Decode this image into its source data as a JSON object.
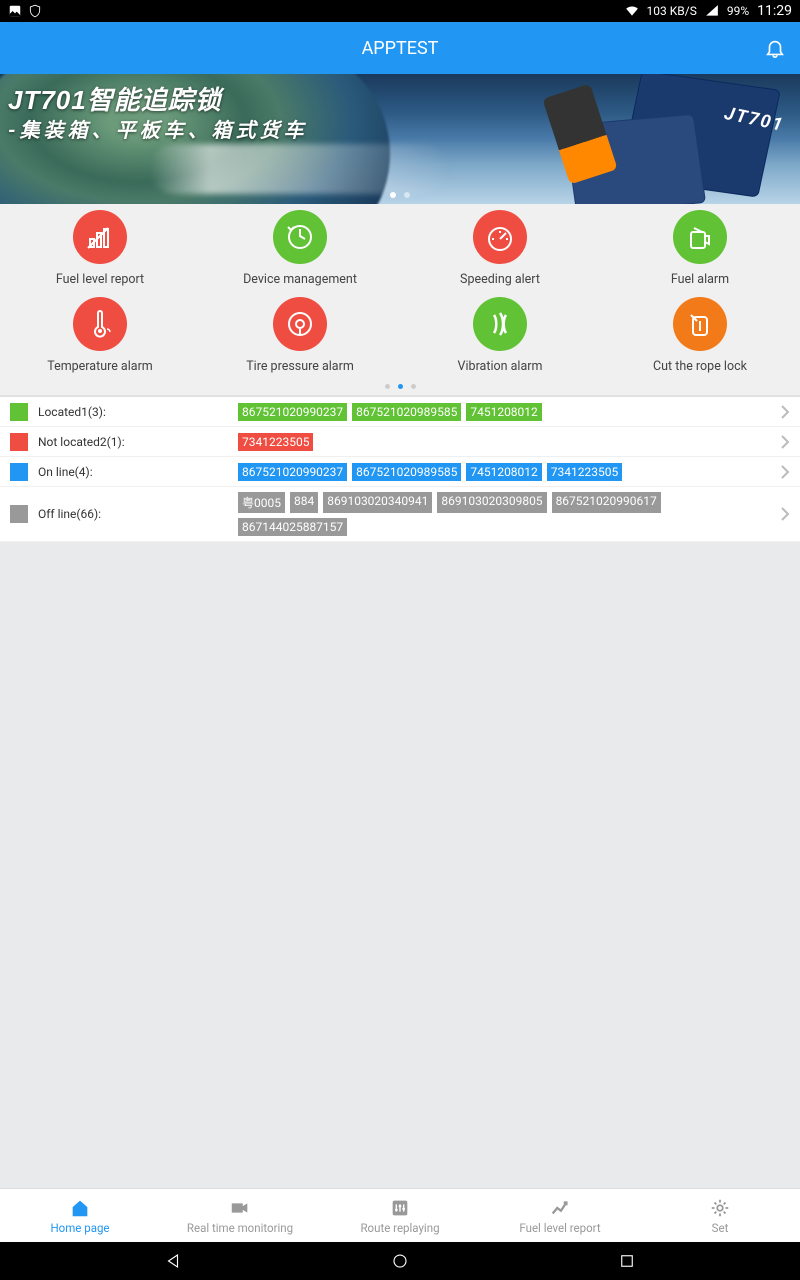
{
  "status_bar": {
    "data_speed": "103 KB/S",
    "battery": "99%",
    "time": "11:29"
  },
  "header": {
    "title": "APPTEST"
  },
  "banner": {
    "title_code": "JT701",
    "title_text": "智能追踪锁",
    "subtitle": "-集装箱、平板车、箱式货车",
    "device_label": "JT701"
  },
  "colors": {
    "red": "#f04d42",
    "green": "#60c234",
    "orange": "#f37a18",
    "blue_header": "#2196f3",
    "gray": "#999999",
    "chip_green": "#60c234",
    "chip_red": "#f04d42",
    "chip_blue": "#2196f3",
    "chip_gray": "#999999"
  },
  "grid": {
    "items": [
      {
        "label": "Fuel level report",
        "color": "#f04d42",
        "icon": "chart"
      },
      {
        "label": "Device management",
        "color": "#60c234",
        "icon": "refresh"
      },
      {
        "label": "Speeding alert",
        "color": "#f04d42",
        "icon": "gauge"
      },
      {
        "label": "Fuel alarm",
        "color": "#60c234",
        "icon": "fuel"
      },
      {
        "label": "Temperature alarm",
        "color": "#f04d42",
        "icon": "thermo"
      },
      {
        "label": "Tire pressure alarm",
        "color": "#f04d42",
        "icon": "tire"
      },
      {
        "label": "Vibration alarm",
        "color": "#60c234",
        "icon": "vibrate"
      },
      {
        "label": "Cut the rope lock",
        "color": "#f37a18",
        "icon": "cut"
      }
    ]
  },
  "status_rows": [
    {
      "label": "Located1(3):",
      "color": "#60c234",
      "chip_color": "#60c234",
      "chips": [
        "867521020990237",
        "867521020989585",
        "7451208012"
      ]
    },
    {
      "label": "Not located2(1):",
      "color": "#f04d42",
      "chip_color": "#f04d42",
      "chips": [
        "7341223505"
      ]
    },
    {
      "label": "On line(4):",
      "color": "#2196f3",
      "chip_color": "#2196f3",
      "chips": [
        "867521020990237",
        "867521020989585",
        "7451208012",
        "7341223505"
      ]
    },
    {
      "label": "Off line(66):",
      "color": "#999999",
      "chip_color": "#999999",
      "chips": [
        "粤0005",
        "884",
        "869103020340941",
        "869103020309805",
        "867521020990617",
        "867144025887157"
      ]
    }
  ],
  "bottom_nav": {
    "items": [
      {
        "label": "Home page",
        "icon": "home",
        "active": true
      },
      {
        "label": "Real time monitoring",
        "icon": "camera",
        "active": false
      },
      {
        "label": "Route replaying",
        "icon": "sliders",
        "active": false
      },
      {
        "label": "Fuel level report",
        "icon": "trend",
        "active": false
      },
      {
        "label": "Set",
        "icon": "gear",
        "active": false
      }
    ]
  }
}
